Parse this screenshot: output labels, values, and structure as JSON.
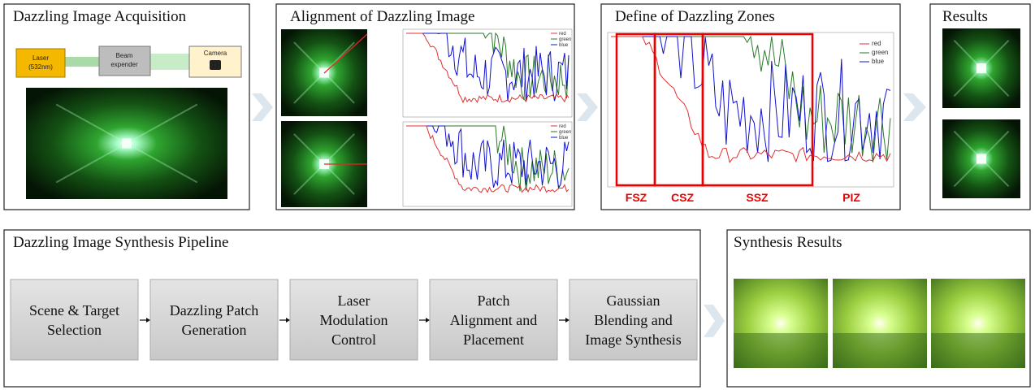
{
  "panels": {
    "acquisition": {
      "title": "Dazzling Image Acquisition",
      "laser": "Laser",
      "laser_wavelength": "(532nm)",
      "beam_expander": [
        "Beam",
        "expender"
      ],
      "camera": "Camera"
    },
    "alignment": {
      "title": "Alignment of Dazzling Image",
      "legend": [
        "red",
        "green",
        "blue"
      ]
    },
    "zones": {
      "title": "Define of Dazzling Zones",
      "legend": [
        "red",
        "green",
        "blue"
      ],
      "zone_labels": [
        "FSZ",
        "CSZ",
        "SSZ",
        "PIZ"
      ]
    },
    "results": {
      "title": "Results"
    },
    "pipeline": {
      "title": "Dazzling Image Synthesis Pipeline",
      "steps": [
        [
          "Scene & Target",
          "Selection"
        ],
        [
          "Dazzling Patch",
          "Generation"
        ],
        [
          "Laser",
          "Modulation",
          "Control"
        ],
        [
          "Patch",
          "Alignment and",
          "Placement"
        ],
        [
          "Gaussian",
          "Blending and",
          "Image Synthesis"
        ]
      ]
    },
    "synthesis": {
      "title": "Synthesis Results"
    }
  }
}
